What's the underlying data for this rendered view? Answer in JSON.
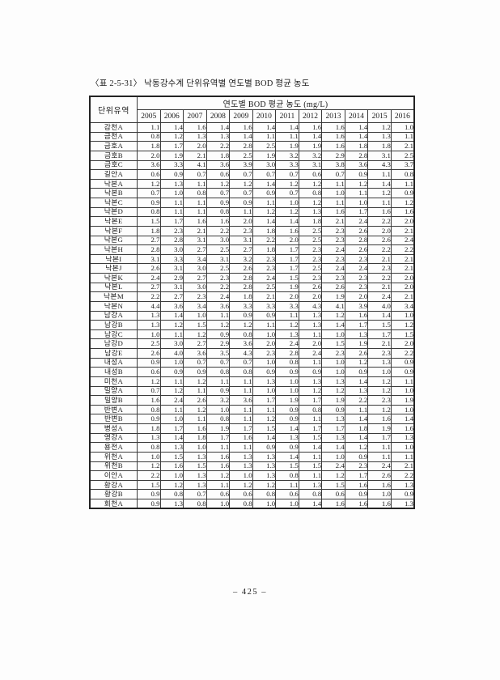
{
  "page": {
    "title": "〈표 2-5-31〉 낙동강수계 단위유역별 연도별 BOD 평균 농도",
    "footer": "– 425 –"
  },
  "table": {
    "corner_header": "단위유역",
    "group_header": "연도별 BOD 평균 농도 (mg/L)",
    "years": [
      "2005",
      "2006",
      "2007",
      "2008",
      "2009",
      "2010",
      "2011",
      "2012",
      "2013",
      "2014",
      "2015",
      "2016"
    ],
    "rows": [
      {
        "name": "감천A",
        "values": [
          "1.1",
          "1.4",
          "1.6",
          "1.4",
          "1.6",
          "1.4",
          "1.4",
          "1.6",
          "1.6",
          "1.4",
          "1.2",
          "1.0"
        ]
      },
      {
        "name": "금천A",
        "values": [
          "0.8",
          "1.2",
          "1.3",
          "1.3",
          "1.4",
          "1.1",
          "1.1",
          "1.4",
          "1.6",
          "1.4",
          "1.3",
          "1.1"
        ]
      },
      {
        "name": "금호A",
        "values": [
          "1.8",
          "1.7",
          "2.0",
          "2.2",
          "2.8",
          "2.5",
          "1.9",
          "1.9",
          "1.6",
          "1.8",
          "1.8",
          "2.1"
        ]
      },
      {
        "name": "금호B",
        "values": [
          "2.0",
          "1.9",
          "2.1",
          "1.8",
          "2.5",
          "1.9",
          "3.2",
          "3.2",
          "2.9",
          "2.8",
          "3.1",
          "2.5"
        ]
      },
      {
        "name": "금호C",
        "values": [
          "3.6",
          "3.3",
          "4.1",
          "3.6",
          "3.9",
          "3.0",
          "3.3",
          "3.1",
          "3.8",
          "3.6",
          "4.3",
          "3.7"
        ]
      },
      {
        "name": "길안A",
        "values": [
          "0.6",
          "0.9",
          "0.7",
          "0.6",
          "0.7",
          "0.7",
          "0.7",
          "0.6",
          "0.7",
          "0.9",
          "1.1",
          "0.8"
        ]
      },
      {
        "name": "낙본A",
        "values": [
          "1.2",
          "1.3",
          "1.1",
          "1.2",
          "1.2",
          "1.4",
          "1.2",
          "1.2",
          "1.1",
          "1.2",
          "1.4",
          "1.1"
        ]
      },
      {
        "name": "낙본B",
        "values": [
          "0.7",
          "1.0",
          "0.8",
          "0.7",
          "0.7",
          "0.9",
          "0.7",
          "0.8",
          "1.0",
          "1.1",
          "1.2",
          "0.9"
        ]
      },
      {
        "name": "낙본C",
        "values": [
          "0.9",
          "1.1",
          "1.1",
          "0.9",
          "0.9",
          "1.1",
          "1.0",
          "1.2",
          "1.1",
          "1.0",
          "1.1",
          "1.2"
        ]
      },
      {
        "name": "낙본D",
        "values": [
          "0.8",
          "1.1",
          "1.1",
          "0.8",
          "1.1",
          "1.2",
          "1.2",
          "1.3",
          "1.6",
          "1.7",
          "1.6",
          "1.6"
        ]
      },
      {
        "name": "낙본E",
        "values": [
          "1.5",
          "1.7",
          "1.6",
          "1.6",
          "2.0",
          "1.4",
          "1.4",
          "1.8",
          "2.1",
          "2.4",
          "2.2",
          "2.0"
        ]
      },
      {
        "name": "낙본F",
        "values": [
          "1.8",
          "2.3",
          "2.1",
          "2.2",
          "2.3",
          "1.8",
          "1.6",
          "2.5",
          "2.3",
          "2.6",
          "2.0",
          "2.1"
        ]
      },
      {
        "name": "낙본G",
        "values": [
          "2.7",
          "2.8",
          "3.1",
          "3.0",
          "3.1",
          "2.2",
          "2.0",
          "2.5",
          "2.3",
          "2.8",
          "2.6",
          "2.4"
        ]
      },
      {
        "name": "낙본H",
        "values": [
          "2.8",
          "3.0",
          "2.7",
          "2.5",
          "2.7",
          "1.8",
          "1.7",
          "2.3",
          "2.4",
          "2.6",
          "2.2",
          "2.2"
        ]
      },
      {
        "name": "낙본I",
        "values": [
          "3.1",
          "3.3",
          "3.4",
          "3.1",
          "3.2",
          "2.3",
          "1.7",
          "2.3",
          "2.3",
          "2.3",
          "2.1",
          "2.1"
        ]
      },
      {
        "name": "낙본J",
        "values": [
          "2.6",
          "3.1",
          "3.0",
          "2.5",
          "2.6",
          "2.3",
          "1.7",
          "2.5",
          "2.4",
          "2.4",
          "2.3",
          "2.1"
        ]
      },
      {
        "name": "낙본K",
        "values": [
          "2.4",
          "2.9",
          "2.7",
          "2.3",
          "2.8",
          "2.4",
          "1.5",
          "2.3",
          "2.3",
          "2.3",
          "2.2",
          "2.0"
        ]
      },
      {
        "name": "낙본L",
        "values": [
          "2.7",
          "3.1",
          "3.0",
          "2.2",
          "2.8",
          "2.5",
          "1.9",
          "2.6",
          "2.6",
          "2.3",
          "2.1",
          "2.0"
        ]
      },
      {
        "name": "낙본M",
        "values": [
          "2.2",
          "2.7",
          "2.3",
          "2.4",
          "1.8",
          "2.1",
          "2.0",
          "2.0",
          "1.9",
          "2.0",
          "2.4",
          "2.1"
        ]
      },
      {
        "name": "낙본N",
        "values": [
          "4.4",
          "3.6",
          "3.4",
          "3.6",
          "3.3",
          "3.3",
          "3.3",
          "4.3",
          "4.1",
          "3.9",
          "4.0",
          "3.4"
        ]
      },
      {
        "name": "남강A",
        "values": [
          "1.3",
          "1.4",
          "1.0",
          "1.1",
          "0.9",
          "0.9",
          "1.1",
          "1.3",
          "1.2",
          "1.6",
          "1.4",
          "1.0"
        ]
      },
      {
        "name": "남강B",
        "values": [
          "1.3",
          "1.2",
          "1.5",
          "1.2",
          "1.2",
          "1.1",
          "1.2",
          "1.3",
          "1.4",
          "1.7",
          "1.5",
          "1.2"
        ]
      },
      {
        "name": "남강C",
        "values": [
          "1.0",
          "1.1",
          "1.2",
          "0.9",
          "0.8",
          "1.0",
          "1.3",
          "1.1",
          "1.0",
          "1.3",
          "1.7",
          "1.5"
        ]
      },
      {
        "name": "남강D",
        "values": [
          "2.5",
          "3.0",
          "2.7",
          "2.9",
          "3.6",
          "2.0",
          "2.4",
          "2.0",
          "1.5",
          "1.9",
          "2.1",
          "2.0"
        ]
      },
      {
        "name": "남강E",
        "values": [
          "2.6",
          "4.0",
          "3.6",
          "3.5",
          "4.3",
          "2.3",
          "2.8",
          "2.4",
          "2.3",
          "2.6",
          "2.3",
          "2.2"
        ]
      },
      {
        "name": "내성A",
        "values": [
          "0.9",
          "1.0",
          "0.7",
          "0.7",
          "0.7",
          "1.0",
          "0.8",
          "1.1",
          "1.0",
          "1.2",
          "1.3",
          "0.9"
        ]
      },
      {
        "name": "내성B",
        "values": [
          "0.6",
          "0.9",
          "0.9",
          "0.8",
          "0.8",
          "0.9",
          "0.9",
          "0.9",
          "1.0",
          "0.9",
          "1.0",
          "0.9"
        ]
      },
      {
        "name": "미천A",
        "values": [
          "1.2",
          "1.1",
          "1.2",
          "1.1",
          "1.1",
          "1.3",
          "1.0",
          "1.3",
          "1.3",
          "1.4",
          "1.2",
          "1.1"
        ]
      },
      {
        "name": "밀양A",
        "values": [
          "0.7",
          "1.2",
          "1.1",
          "0.9",
          "1.1",
          "1.0",
          "1.0",
          "1.2",
          "1.2",
          "1.3",
          "1.2",
          "1.0"
        ]
      },
      {
        "name": "밀양B",
        "values": [
          "1.6",
          "2.4",
          "2.6",
          "3.2",
          "3.6",
          "1.7",
          "1.9",
          "1.7",
          "1.9",
          "2.2",
          "2.3",
          "1.9"
        ]
      },
      {
        "name": "반변A",
        "values": [
          "0.8",
          "1.1",
          "1.2",
          "1.0",
          "1.1",
          "1.1",
          "0.9",
          "0.8",
          "0.9",
          "1.1",
          "1.2",
          "1.0"
        ]
      },
      {
        "name": "반변B",
        "values": [
          "0.9",
          "1.0",
          "1.1",
          "0.8",
          "1.1",
          "1.2",
          "0.9",
          "1.1",
          "1.3",
          "1.4",
          "1.6",
          "1.4"
        ]
      },
      {
        "name": "병성A",
        "values": [
          "1.8",
          "1.7",
          "1.6",
          "1.9",
          "1.7",
          "1.5",
          "1.4",
          "1.7",
          "1.7",
          "1.8",
          "1.9",
          "1.6"
        ]
      },
      {
        "name": "영강A",
        "values": [
          "1.3",
          "1.4",
          "1.8",
          "1.7",
          "1.6",
          "1.4",
          "1.3",
          "1.5",
          "1.3",
          "1.4",
          "1.7",
          "1.3"
        ]
      },
      {
        "name": "용전A",
        "values": [
          "0.8",
          "1.3",
          "1.0",
          "1.1",
          "1.1",
          "0.9",
          "0.9",
          "1.4",
          "1.4",
          "1.2",
          "1.1",
          "1.0"
        ]
      },
      {
        "name": "위천A",
        "values": [
          "1.0",
          "1.5",
          "1.3",
          "1.6",
          "1.3",
          "1.3",
          "1.4",
          "1.1",
          "1.0",
          "0.9",
          "1.1",
          "1.1"
        ]
      },
      {
        "name": "위천B",
        "values": [
          "1.2",
          "1.6",
          "1.5",
          "1.6",
          "1.3",
          "1.3",
          "1.5",
          "1.5",
          "2.4",
          "2.3",
          "2.4",
          "2.1"
        ]
      },
      {
        "name": "이안A",
        "values": [
          "2.2",
          "1.0",
          "1.3",
          "1.2",
          "1.0",
          "1.3",
          "0.8",
          "1.1",
          "1.2",
          "1.7",
          "2.6",
          "2.2"
        ]
      },
      {
        "name": "황강A",
        "values": [
          "1.5",
          "1.2",
          "1.3",
          "1.1",
          "1.2",
          "1.2",
          "1.1",
          "1.3",
          "1.5",
          "1.6",
          "1.6",
          "1.3"
        ]
      },
      {
        "name": "황강B",
        "values": [
          "0.9",
          "0.8",
          "0.7",
          "0.6",
          "0.6",
          "0.8",
          "0.6",
          "0.8",
          "0.6",
          "0.9",
          "1.0",
          "0.9"
        ]
      },
      {
        "name": "회천A",
        "values": [
          "0.9",
          "1.3",
          "0.8",
          "1.0",
          "0.8",
          "1.0",
          "1.0",
          "1.4",
          "1.6",
          "1.6",
          "1.6",
          "1.3"
        ]
      }
    ]
  }
}
